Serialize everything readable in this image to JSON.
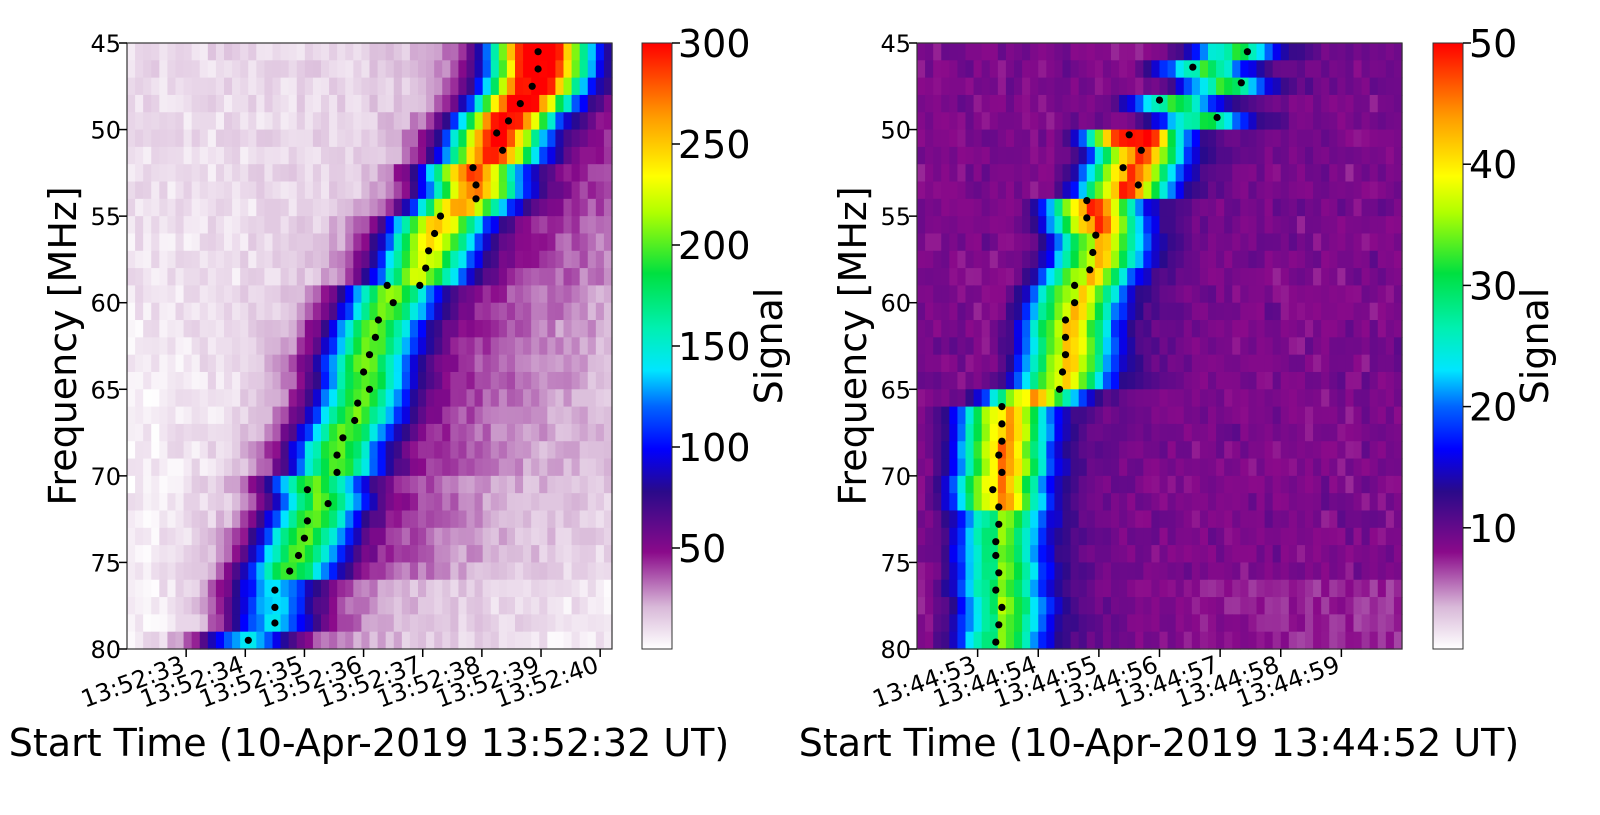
{
  "chart_data": [
    {
      "type": "heatmap",
      "title": "",
      "xlabel": "Start Time (10-Apr-2019 13:52:32 UT)",
      "ylabel": "Frequency  [MHz]",
      "colorbar_label": "Signal",
      "colormap": "gist_ncar-like (white-purple-blue-cyan-green-yellow-orange-red)",
      "x_tick_labels": [
        "13:52:33",
        "13:52:34",
        "13:52:35",
        "13:52:36",
        "13:52:37",
        "13:52:38",
        "13:52:39",
        "13:52:40"
      ],
      "x_tick_seconds": [
        1,
        2,
        3,
        4,
        5,
        6,
        7,
        8
      ],
      "xlim_seconds": [
        0,
        8.2
      ],
      "y_tick_labels": [
        "45",
        "50",
        "55",
        "60",
        "65",
        "70",
        "75",
        "80"
      ],
      "y_ticks": [
        45,
        50,
        55,
        60,
        65,
        70,
        75,
        80
      ],
      "ylim": [
        80,
        45
      ],
      "colorbar_ticks": [
        50,
        100,
        150,
        200,
        250,
        300
      ],
      "colorbar_range": [
        0,
        300
      ],
      "burst_ridge": [
        [
          6.95,
          45.5
        ],
        [
          6.95,
          46.5
        ],
        [
          6.85,
          47.5
        ],
        [
          6.65,
          48.5
        ],
        [
          6.4,
          49.5
        ],
        [
          6.2,
          50.2
        ],
        [
          6.3,
          51.2
        ],
        [
          5.8,
          52.2
        ],
        [
          5.85,
          53.2
        ],
        [
          5.85,
          54.0
        ],
        [
          5.3,
          55.1
        ],
        [
          5.15,
          56.1
        ],
        [
          5.05,
          57.1
        ],
        [
          4.95,
          58.1
        ],
        [
          4.85,
          59.0
        ],
        [
          4.4,
          59.0
        ],
        [
          4.5,
          60.0
        ],
        [
          4.2,
          61.0
        ],
        [
          4.15,
          62.0
        ],
        [
          4.05,
          63.0
        ],
        [
          3.95,
          64.0
        ],
        [
          4.05,
          65.0
        ],
        [
          3.85,
          65.8
        ],
        [
          3.8,
          66.8
        ],
        [
          3.6,
          67.8
        ],
        [
          3.5,
          68.8
        ],
        [
          3.5,
          69.8
        ],
        [
          3.0,
          70.8
        ],
        [
          3.35,
          71.8
        ],
        [
          3.0,
          72.8
        ],
        [
          2.95,
          73.8
        ],
        [
          2.85,
          74.6
        ],
        [
          2.7,
          75.6
        ],
        [
          2.45,
          76.6
        ],
        [
          2.45,
          77.6
        ],
        [
          2.45,
          78.5
        ],
        [
          2.0,
          79.5
        ]
      ],
      "heat_peak": {
        "t": 6.8,
        "f": 45.5,
        "value": 300
      },
      "ridge_dots": [
        [
          6.95,
          45.5
        ],
        [
          6.95,
          46.5
        ],
        [
          6.85,
          47.5
        ],
        [
          6.65,
          48.5
        ],
        [
          6.45,
          49.5
        ],
        [
          6.25,
          50.2
        ],
        [
          6.35,
          51.2
        ],
        [
          5.85,
          52.2
        ],
        [
          5.9,
          53.2
        ],
        [
          5.9,
          54.0
        ],
        [
          5.3,
          55.0
        ],
        [
          5.2,
          56.0
        ],
        [
          5.1,
          57.0
        ],
        [
          5.05,
          58.0
        ],
        [
          4.95,
          59.0
        ],
        [
          4.4,
          59.0
        ],
        [
          4.5,
          60.0
        ],
        [
          4.25,
          61.0
        ],
        [
          4.2,
          62.0
        ],
        [
          4.1,
          63.0
        ],
        [
          4.0,
          64.0
        ],
        [
          4.1,
          65.0
        ],
        [
          3.9,
          65.8
        ],
        [
          3.85,
          66.8
        ],
        [
          3.65,
          67.8
        ],
        [
          3.55,
          68.8
        ],
        [
          3.55,
          69.8
        ],
        [
          3.05,
          70.8
        ],
        [
          3.4,
          71.6
        ],
        [
          3.05,
          72.6
        ],
        [
          3.0,
          73.6
        ],
        [
          2.9,
          74.6
        ],
        [
          2.75,
          75.5
        ],
        [
          2.5,
          76.6
        ],
        [
          2.5,
          77.6
        ],
        [
          2.5,
          78.5
        ],
        [
          2.05,
          79.5
        ]
      ]
    },
    {
      "type": "heatmap",
      "title": "",
      "xlabel": "Start Time (10-Apr-2019 13:44:52 UT)",
      "ylabel": "Frequency  [MHz]",
      "colorbar_label": "Signal",
      "colormap": "gist_ncar-like (white-purple-blue-cyan-green-yellow-orange-red)",
      "x_tick_labels": [
        "13:44:53",
        "13:44:54",
        "13:44:55",
        "13:44:56",
        "13:44:57",
        "13:44:58",
        "13:44:59"
      ],
      "x_tick_seconds": [
        1,
        2,
        3,
        4,
        5,
        6,
        7
      ],
      "xlim_seconds": [
        0,
        8
      ],
      "y_tick_labels": [
        "45",
        "50",
        "55",
        "60",
        "65",
        "70",
        "75",
        "80"
      ],
      "y_ticks": [
        45,
        50,
        55,
        60,
        65,
        70,
        75,
        80
      ],
      "ylim": [
        80,
        45
      ],
      "colorbar_ticks": [
        10,
        20,
        30,
        40,
        50
      ],
      "colorbar_range": [
        0,
        50
      ],
      "burst_ridge": [
        [
          5.4,
          45.2
        ],
        [
          4.5,
          46.3
        ],
        [
          5.25,
          47.3
        ],
        [
          3.95,
          48.3
        ],
        [
          4.9,
          49.3
        ],
        [
          3.5,
          50.3
        ],
        [
          3.7,
          51.2
        ],
        [
          3.4,
          52.2
        ],
        [
          3.65,
          53.2
        ],
        [
          2.85,
          54.1
        ],
        [
          2.85,
          55.1
        ],
        [
          3.0,
          56.1
        ],
        [
          2.95,
          57.1
        ],
        [
          2.9,
          58.1
        ],
        [
          2.6,
          59.0
        ],
        [
          2.6,
          60.0
        ],
        [
          2.45,
          61.0
        ],
        [
          2.45,
          62.0
        ],
        [
          2.45,
          63.0
        ],
        [
          2.4,
          64.0
        ],
        [
          2.3,
          65.0
        ],
        [
          1.4,
          66.0
        ],
        [
          1.4,
          67.0
        ],
        [
          1.4,
          68.0
        ],
        [
          1.35,
          68.8
        ],
        [
          1.4,
          69.8
        ],
        [
          1.25,
          70.8
        ],
        [
          1.35,
          71.8
        ],
        [
          1.35,
          72.8
        ],
        [
          1.3,
          73.8
        ],
        [
          1.3,
          74.6
        ],
        [
          1.35,
          75.6
        ],
        [
          1.3,
          76.6
        ],
        [
          1.4,
          77.6
        ],
        [
          1.35,
          78.6
        ],
        [
          1.3,
          79.6
        ]
      ],
      "ridge_dots": [
        [
          5.45,
          45.5
        ],
        [
          4.55,
          46.4
        ],
        [
          5.35,
          47.3
        ],
        [
          4.0,
          48.3
        ],
        [
          4.95,
          49.3
        ],
        [
          3.5,
          50.3
        ],
        [
          3.7,
          51.2
        ],
        [
          3.4,
          52.2
        ],
        [
          3.65,
          53.2
        ],
        [
          2.8,
          54.1
        ],
        [
          2.8,
          55.1
        ],
        [
          2.95,
          56.1
        ],
        [
          2.9,
          57.1
        ],
        [
          2.85,
          58.1
        ],
        [
          2.6,
          59.0
        ],
        [
          2.6,
          60.0
        ],
        [
          2.45,
          61.0
        ],
        [
          2.45,
          62.0
        ],
        [
          2.45,
          63.0
        ],
        [
          2.4,
          64.0
        ],
        [
          2.35,
          65.0
        ],
        [
          1.4,
          66.0
        ],
        [
          1.4,
          67.0
        ],
        [
          1.4,
          68.0
        ],
        [
          1.35,
          68.8
        ],
        [
          1.4,
          69.8
        ],
        [
          1.25,
          70.8
        ],
        [
          1.35,
          71.8
        ],
        [
          1.35,
          72.8
        ],
        [
          1.3,
          73.8
        ],
        [
          1.3,
          74.6
        ],
        [
          1.35,
          75.6
        ],
        [
          1.3,
          76.6
        ],
        [
          1.4,
          77.6
        ],
        [
          1.35,
          78.6
        ],
        [
          1.3,
          79.6
        ]
      ]
    }
  ]
}
